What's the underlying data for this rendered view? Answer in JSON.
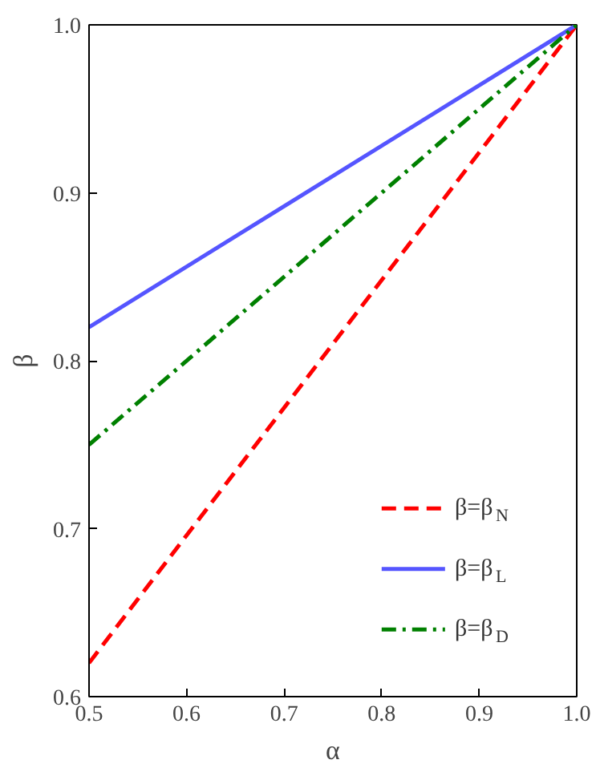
{
  "chart_data": {
    "type": "line",
    "xlabel": "α",
    "ylabel": "β",
    "x": [
      0.5,
      1.0
    ],
    "series": [
      {
        "name": "β=β$_{N}$",
        "color": "#ff0000",
        "values": [
          0.62,
          1.0
        ],
        "line_style": "dashed"
      },
      {
        "name": "β=β$_{L}$",
        "color": "#5555ff",
        "values": [
          0.82,
          1.0
        ],
        "line_style": "solid"
      },
      {
        "name": "β=β$_{D}$",
        "color": "#008000",
        "values": [
          0.75,
          1.0
        ],
        "line_style": "dashdot"
      }
    ],
    "xlim": [
      0.5,
      1.0
    ],
    "ylim": [
      0.6,
      1.0
    ],
    "xticks": [
      0.5,
      0.6,
      0.7,
      0.8,
      0.9,
      {
        "value": 1,
        "label": "1.0"
      }
    ],
    "yticks": [
      0.6,
      0.7,
      0.8,
      0.9,
      {
        "value": 1,
        "label": "1.0"
      }
    ],
    "grid": false,
    "legend": "bottom right",
    "marker": "none"
  }
}
